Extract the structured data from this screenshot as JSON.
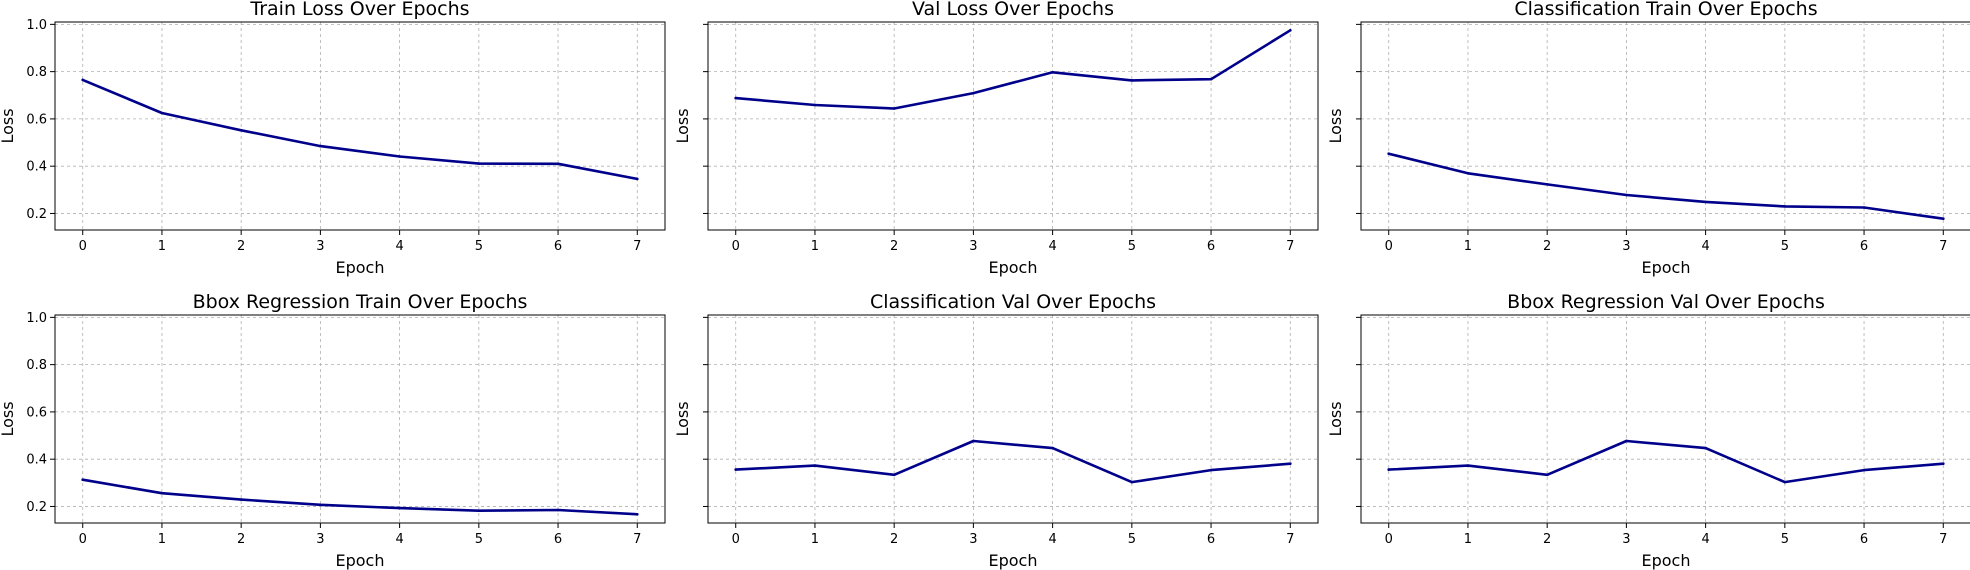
{
  "colors": {
    "line": "#00008b",
    "grid": "#b0b0b0"
  },
  "chart_data": [
    {
      "type": "line",
      "title": "Train Loss Over Epochs",
      "xlabel": "Epoch",
      "ylabel": "Loss",
      "x": [
        0,
        1,
        2,
        3,
        4,
        5,
        6,
        7
      ],
      "values": [
        0.765,
        0.625,
        0.552,
        0.485,
        0.441,
        0.411,
        0.41,
        0.346
      ],
      "xlim": [
        -0.35,
        7.35
      ],
      "ylim": [
        0.13,
        1.01
      ],
      "xticks": [
        0,
        1,
        2,
        3,
        4,
        5,
        6,
        7
      ],
      "yticks": [
        0.2,
        0.4,
        0.6,
        0.8,
        1.0
      ],
      "ytick_labels": [
        "0.2",
        "0.4",
        "0.6",
        "0.8",
        "1.0"
      ],
      "grid": true
    },
    {
      "type": "line",
      "title": "Val Loss Over Epochs",
      "xlabel": "Epoch",
      "ylabel": "Loss",
      "x": [
        0,
        1,
        2,
        3,
        4,
        5,
        6,
        7
      ],
      "values": [
        0.688,
        0.659,
        0.644,
        0.709,
        0.797,
        0.763,
        0.768,
        0.975
      ],
      "xlim": [
        -0.35,
        7.35
      ],
      "ylim": [
        0.13,
        1.01
      ],
      "xticks": [
        0,
        1,
        2,
        3,
        4,
        5,
        6,
        7
      ],
      "yticks": [
        0.2,
        0.4,
        0.6,
        0.8,
        1.0
      ],
      "ytick_labels": [],
      "grid": true
    },
    {
      "type": "line",
      "title": "Classification Train Over Epochs",
      "xlabel": "Epoch",
      "ylabel": "Loss",
      "x": [
        0,
        1,
        2,
        3,
        4,
        5,
        6,
        7
      ],
      "values": [
        0.453,
        0.37,
        0.323,
        0.278,
        0.249,
        0.23,
        0.225,
        0.178
      ],
      "xlim": [
        -0.35,
        7.35
      ],
      "ylim": [
        0.13,
        1.01
      ],
      "xticks": [
        0,
        1,
        2,
        3,
        4,
        5,
        6,
        7
      ],
      "yticks": [
        0.2,
        0.4,
        0.6,
        0.8,
        1.0
      ],
      "ytick_labels": [],
      "grid": true
    },
    {
      "type": "line",
      "title": "Bbox Regression Train Over Epochs",
      "xlabel": "Epoch",
      "ylabel": "Loss",
      "x": [
        0,
        1,
        2,
        3,
        4,
        5,
        6,
        7
      ],
      "values": [
        0.313,
        0.256,
        0.229,
        0.207,
        0.193,
        0.182,
        0.185,
        0.167
      ],
      "xlim": [
        -0.35,
        7.35
      ],
      "ylim": [
        0.13,
        1.01
      ],
      "xticks": [
        0,
        1,
        2,
        3,
        4,
        5,
        6,
        7
      ],
      "yticks": [
        0.2,
        0.4,
        0.6,
        0.8,
        1.0
      ],
      "ytick_labels": [
        "0.2",
        "0.4",
        "0.6",
        "0.8",
        "1.0"
      ],
      "grid": true
    },
    {
      "type": "line",
      "title": "Classification Val Over Epochs",
      "xlabel": "Epoch",
      "ylabel": "Loss",
      "x": [
        0,
        1,
        2,
        3,
        4,
        5,
        6,
        7
      ],
      "values": [
        0.356,
        0.373,
        0.334,
        0.477,
        0.447,
        0.303,
        0.354,
        0.381
      ],
      "xlim": [
        -0.35,
        7.35
      ],
      "ylim": [
        0.13,
        1.01
      ],
      "xticks": [
        0,
        1,
        2,
        3,
        4,
        5,
        6,
        7
      ],
      "yticks": [
        0.2,
        0.4,
        0.6,
        0.8,
        1.0
      ],
      "ytick_labels": [],
      "grid": true
    },
    {
      "type": "line",
      "title": "Bbox Regression Val Over Epochs",
      "xlabel": "Epoch",
      "ylabel": "Loss",
      "x": [
        0,
        1,
        2,
        3,
        4,
        5,
        6,
        7
      ],
      "values": [
        0.356,
        0.373,
        0.334,
        0.477,
        0.447,
        0.303,
        0.354,
        0.381
      ],
      "xlim": [
        -0.35,
        7.35
      ],
      "ylim": [
        0.13,
        1.01
      ],
      "xticks": [
        0,
        1,
        2,
        3,
        4,
        5,
        6,
        7
      ],
      "yticks": [
        0.2,
        0.4,
        0.6,
        0.8,
        1.0
      ],
      "ytick_labels": [],
      "grid": true
    }
  ]
}
